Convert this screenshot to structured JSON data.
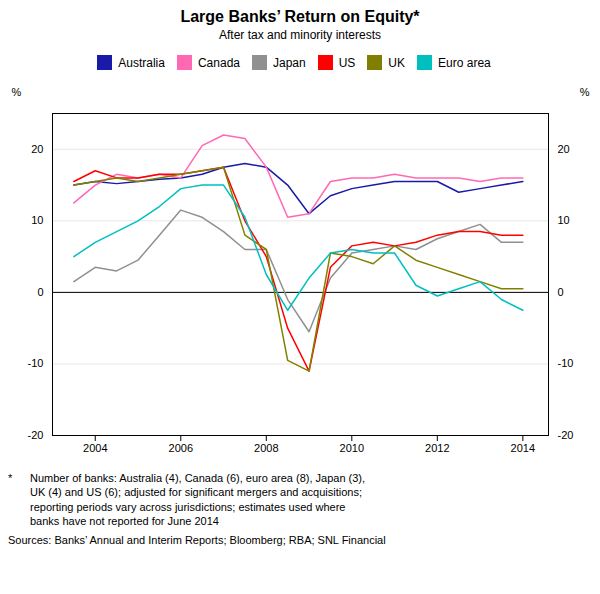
{
  "chart_data": {
    "type": "line",
    "title": "Large Banks’ Return on Equity*",
    "subtitle": "After tax and minority interests",
    "ylabel": "%",
    "y2label": "%",
    "footnote_marker": "*",
    "footnote": "Number of banks: Australia (4), Canada (6), euro area (8), Japan (3),\nUK (4) and US (6); adjusted for significant mergers and acquisitions;\nreporting periods vary across jurisdictions; estimates used where\nbanks have not reported for June 2014",
    "sources": "Sources:  Banks’ Annual and Interim Reports; Bloomberg; RBA; SNL Financial",
    "xlim": [
      2003.0,
      2014.6
    ],
    "ylim": [
      -20,
      25
    ],
    "xticks": [
      2004,
      2006,
      2008,
      2010,
      2012,
      2014
    ],
    "yticks": [
      -20,
      -10,
      0,
      10,
      20
    ],
    "grid": true,
    "legend": "top",
    "x": [
      2003.5,
      2004.0,
      2004.5,
      2005.0,
      2005.5,
      2006.0,
      2006.5,
      2007.0,
      2007.5,
      2008.0,
      2008.5,
      2009.0,
      2009.5,
      2010.0,
      2010.5,
      2011.0,
      2011.5,
      2012.0,
      2012.5,
      2013.0,
      2013.5,
      2014.0
    ],
    "series": [
      {
        "name": "Australia",
        "color": "#1a1aaa",
        "values": [
          15.0,
          15.5,
          15.2,
          15.5,
          15.8,
          16.0,
          16.5,
          17.5,
          18.0,
          17.5,
          15.0,
          11.0,
          13.5,
          14.5,
          15.0,
          15.5,
          15.5,
          15.5,
          14.0,
          14.5,
          15.0,
          15.5
        ]
      },
      {
        "name": "Canada",
        "color": "#FF69B4",
        "values": [
          12.5,
          15.0,
          16.5,
          16.0,
          16.5,
          16.0,
          20.5,
          22.0,
          21.5,
          17.5,
          10.5,
          11.0,
          15.5,
          16.0,
          16.0,
          16.5,
          16.0,
          16.0,
          16.0,
          15.5,
          16.0,
          16.0
        ]
      },
      {
        "name": "Japan",
        "color": "#909090",
        "values": [
          1.5,
          3.5,
          3.0,
          4.5,
          8.0,
          11.5,
          10.5,
          8.5,
          6.0,
          6.0,
          -1.0,
          -5.5,
          2.0,
          5.5,
          6.0,
          6.5,
          6.0,
          7.5,
          8.5,
          9.5,
          7.0,
          7.0
        ]
      },
      {
        "name": "US",
        "color": "#FF0000",
        "values": [
          15.5,
          17.0,
          16.0,
          16.0,
          16.5,
          16.5,
          17.0,
          17.5,
          10.0,
          5.0,
          -5.0,
          -11.0,
          3.5,
          6.5,
          7.0,
          6.5,
          7.0,
          8.0,
          8.5,
          8.5,
          8.0,
          8.0
        ]
      },
      {
        "name": "UK",
        "color": "#808000",
        "values": [
          15.0,
          15.5,
          16.0,
          15.5,
          16.0,
          16.5,
          17.0,
          17.5,
          8.0,
          6.0,
          -9.5,
          -11.0,
          5.5,
          5.0,
          4.0,
          6.5,
          4.5,
          3.5,
          2.5,
          1.5,
          0.5,
          0.5
        ]
      },
      {
        "name": "Euro area",
        "color": "#00BFBF",
        "values": [
          5.0,
          7.0,
          8.5,
          10.0,
          12.0,
          14.5,
          15.0,
          15.0,
          10.5,
          2.5,
          -2.5,
          2.0,
          5.5,
          6.0,
          5.5,
          5.5,
          1.0,
          -0.5,
          0.5,
          1.5,
          -1.0,
          -2.5
        ]
      }
    ]
  }
}
